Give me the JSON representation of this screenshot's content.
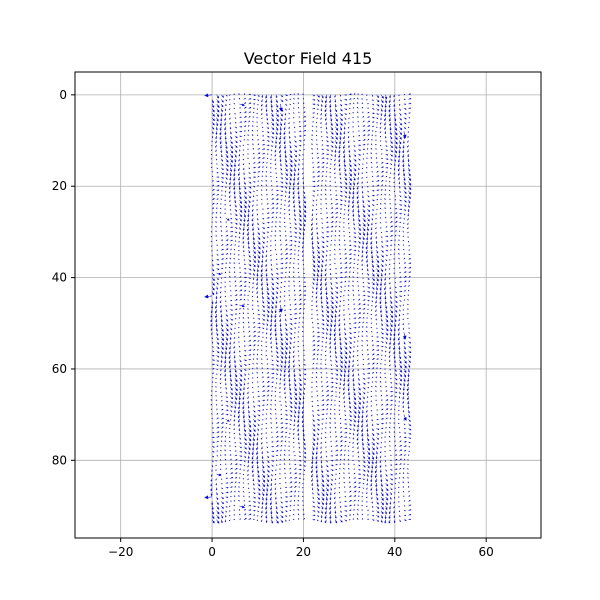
{
  "chart_data": {
    "type": "quiver",
    "title": "Vector Field 415",
    "xlabel": "",
    "ylabel": "",
    "xlim": [
      -30,
      72
    ],
    "ylim": [
      97,
      -5
    ],
    "y_inverted": true,
    "grid": true,
    "x_ticks": [
      -20,
      0,
      20,
      40,
      60
    ],
    "y_ticks": [
      0,
      20,
      40,
      60,
      80
    ],
    "arrow_color": "#0000cc",
    "field_extent": {
      "x": [
        0,
        43
      ],
      "y": [
        0,
        93
      ]
    },
    "sample_step": 1,
    "gap_column_x": [
      21
    ],
    "sample_vectors": [
      {
        "x": 0,
        "y": 0,
        "u": -1.0,
        "v": 0.1
      },
      {
        "x": 0,
        "y": 44,
        "u": -1.0,
        "v": 0.15
      },
      {
        "x": 0,
        "y": 88,
        "u": -1.0,
        "v": 0.1
      },
      {
        "x": 1,
        "y": 39,
        "u": 0.6,
        "v": 0.2
      },
      {
        "x": 1,
        "y": 83,
        "u": 0.6,
        "v": 0.2
      },
      {
        "x": 3,
        "y": 27,
        "u": 0.5,
        "v": 0.3
      },
      {
        "x": 3,
        "y": 71,
        "u": 0.5,
        "v": 0.3
      },
      {
        "x": 6,
        "y": 2,
        "u": 0.7,
        "v": 0.2
      },
      {
        "x": 6,
        "y": 46,
        "u": 0.7,
        "v": 0.2
      },
      {
        "x": 6,
        "y": 90,
        "u": 0.7,
        "v": 0.2
      },
      {
        "x": 15,
        "y": 2,
        "u": 0.1,
        "v": 1.0
      },
      {
        "x": 15,
        "y": 46,
        "u": 0.1,
        "v": 1.0
      },
      {
        "x": 38,
        "y": 0,
        "u": 0.1,
        "v": 0.6
      },
      {
        "x": 42,
        "y": 8,
        "u": 0.2,
        "v": 0.9
      },
      {
        "x": 42,
        "y": 52,
        "u": 0.2,
        "v": 0.9
      },
      {
        "x": 42,
        "y": 70,
        "u": 0.3,
        "v": 0.8
      }
    ]
  }
}
